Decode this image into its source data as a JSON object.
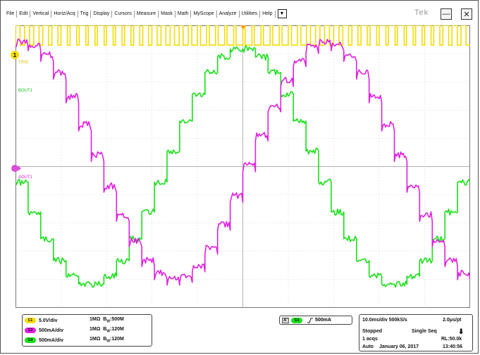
{
  "menu": {
    "items": [
      "File",
      "Edit",
      "Vertical",
      "Horiz/Acq",
      "Trig",
      "Display",
      "Cursors",
      "Measure",
      "Mask",
      "Math",
      "MyScope",
      "Analyze",
      "Utilities",
      "Help"
    ],
    "dropdown_icon": "chevron-down-icon"
  },
  "brand": "Tek",
  "window": {
    "minimize_icon": "minimize-icon",
    "close_icon": "close-icon"
  },
  "channel_tags": {
    "trig": "TRIG",
    "bout": "BOUT1",
    "aout": "AOUT1"
  },
  "markers": {
    "ch1": "1"
  },
  "colors": {
    "ch1": "#f5dc00",
    "ch3": "#e020e0",
    "ch4": "#19e019",
    "trigger": "#ff9a00",
    "grid": "#c8c8c8"
  },
  "channels": [
    {
      "id": "C1",
      "scale": "5.0V/div",
      "impedance": "1MΩ",
      "bw_prefix": "B",
      "bw_sub": "W",
      "bw_value": ":500M",
      "color": "#f5dc00"
    },
    {
      "id": "C3",
      "scale": "500mA/div",
      "impedance": "1MΩ",
      "bw_prefix": "B",
      "bw_sub": "W",
      "bw_value": ":120M",
      "color": "#e020e0"
    },
    {
      "id": "C4",
      "scale": "500mA/div",
      "impedance": "1MΩ",
      "bw_prefix": "B",
      "bw_sub": "W",
      "bw_value": ":120M",
      "color": "#19e019"
    }
  ],
  "trigger": {
    "label": "A'",
    "source": "C4",
    "slope_icon": "rising-edge-icon",
    "level": "500mA"
  },
  "acquisition": {
    "timebase": "10.0ms/div 500kS/s",
    "resolution": "2.0μs/pt",
    "state": "Stopped",
    "mode": "Single Seq",
    "acqs": "1 acqs",
    "record_length": "RL:50.0k",
    "trigger_mode": "Auto",
    "date": "January 06, 2017",
    "time": "13:40:56",
    "arrow_icon": "arrow-down-icon"
  },
  "chart_data": {
    "type": "line",
    "divisions": {
      "horizontal": 10,
      "vertical": 10
    },
    "series": [
      {
        "channel": "C1",
        "shape": "pwm-square",
        "cycles": 50,
        "high_div": 0.7,
        "low_div": 0.0,
        "offset_div": 4.3
      },
      {
        "channel": "C4",
        "shape": "stepped-sine",
        "amplitude_div": 4.2,
        "periods": 1.5,
        "phase_deg": 90,
        "offset_div": 0
      },
      {
        "channel": "C3",
        "shape": "stepped-sine",
        "amplitude_div": 4.2,
        "periods": 1.5,
        "phase_deg": -10,
        "offset_div": 0
      }
    ]
  }
}
